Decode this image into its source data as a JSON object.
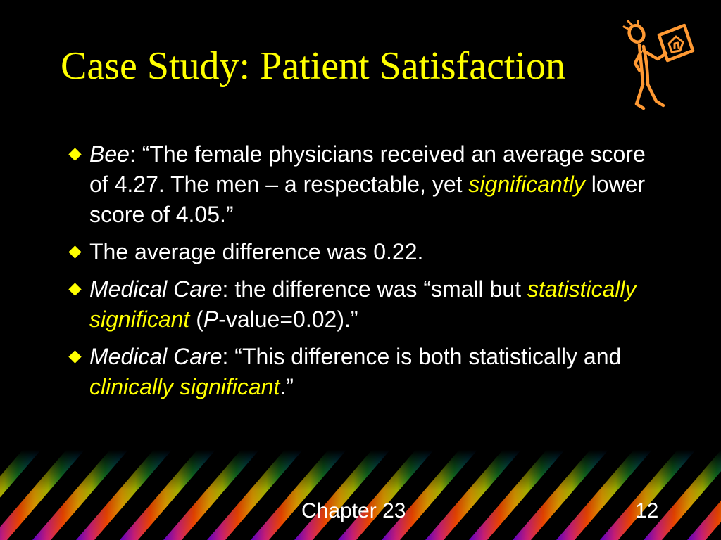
{
  "slide": {
    "title": "Case Study: Patient Satisfaction",
    "footer": "Chapter 23",
    "page_number": "12",
    "bullets": [
      {
        "parts": [
          {
            "text": "Bee",
            "style": "italic"
          },
          {
            "text": ": “The female physicians received an average score of 4.27.  The men – a respectable, yet ",
            "style": "plain"
          },
          {
            "text": "significantly",
            "style": "emphasis"
          },
          {
            "text": " lower score of 4.05.”",
            "style": "plain"
          }
        ]
      },
      {
        "parts": [
          {
            "text": "The average difference was 0.22.",
            "style": "plain"
          }
        ]
      },
      {
        "parts": [
          {
            "text": "Medical Care",
            "style": "italic"
          },
          {
            "text": ": the difference was “small but ",
            "style": "plain"
          },
          {
            "text": "statistically significant",
            "style": "emphasis"
          },
          {
            "text": " (",
            "style": "plain"
          },
          {
            "text": "P",
            "style": "italic"
          },
          {
            "text": "-value=0.02).”",
            "style": "plain"
          }
        ]
      },
      {
        "parts": [
          {
            "text": "Medical Care",
            "style": "italic"
          },
          {
            "text": ": “This difference is both statistically and ",
            "style": "plain"
          },
          {
            "text": "clinically significant",
            "style": "emphasis"
          },
          {
            "text": ".”",
            "style": "plain"
          }
        ]
      }
    ]
  },
  "icons": {
    "bullet": "diamond-bullet-icon",
    "figure": "person-holding-sign-icon"
  },
  "colors": {
    "background": "#000000",
    "title": "#ffff00",
    "body_text": "#ffffff",
    "emphasis": "#ffff00",
    "bullet_marker": "#ffff00",
    "figure": "#ff9933"
  }
}
